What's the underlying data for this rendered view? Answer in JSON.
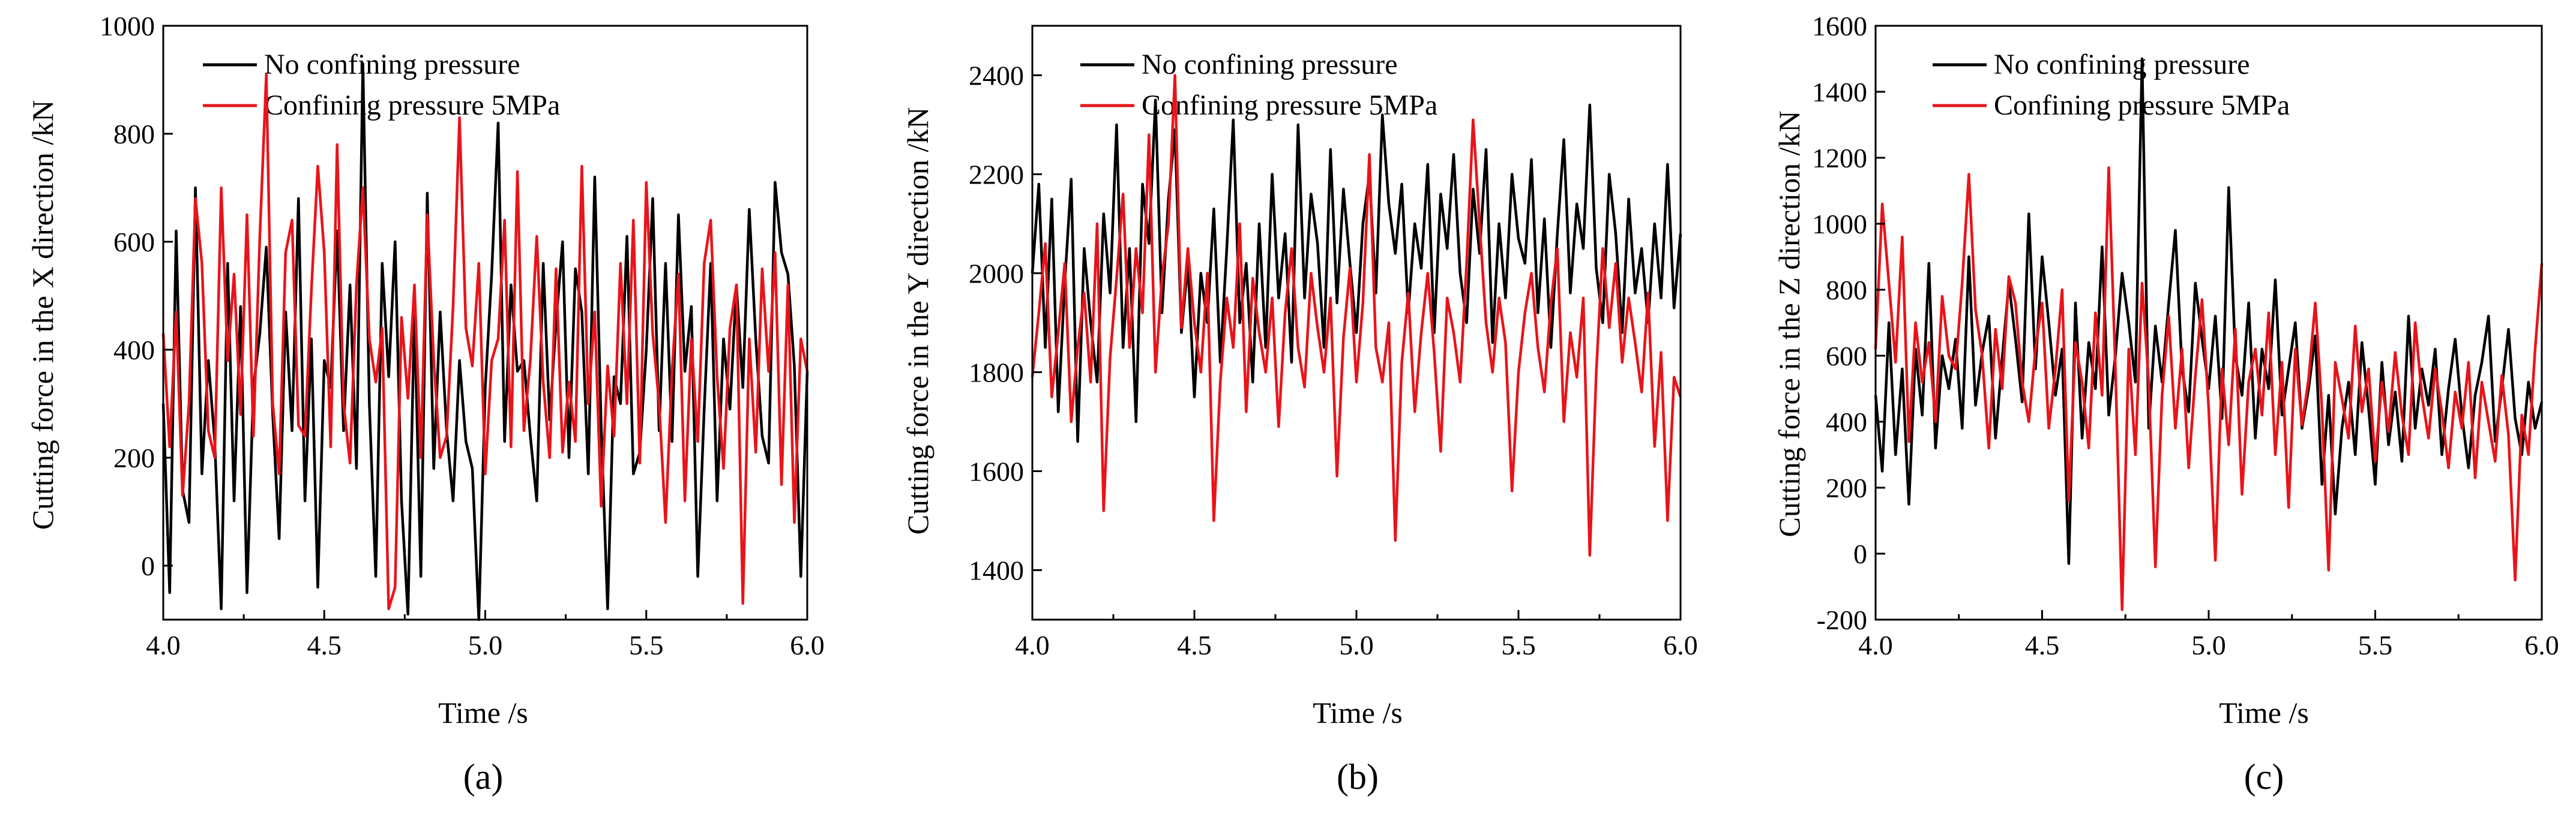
{
  "colors": {
    "series_1": "#000000",
    "series_2": "#e8141a",
    "axis": "#000000",
    "background": "#ffffff"
  },
  "chart_data": [
    {
      "type": "line",
      "panel_label": "(a)",
      "xlabel": "Time /s",
      "ylabel": "Cutting force in the X direction /kN",
      "xlim": [
        4.0,
        6.0
      ],
      "ylim": [
        -100,
        1000
      ],
      "xticks": [
        4.0,
        4.5,
        5.0,
        5.5,
        6.0
      ],
      "xtick_labels": [
        "4.0",
        "4.5",
        "5.0",
        "5.5",
        "6.0"
      ],
      "yticks": [
        0,
        200,
        400,
        600,
        800,
        1000
      ],
      "ytick_labels": [
        "0",
        "200",
        "400",
        "600",
        "800",
        "1000"
      ],
      "legend": [
        "No confining pressure",
        "Confining pressure 5MPa"
      ],
      "series": [
        {
          "name": "No confining pressure",
          "color": "#000000",
          "x_start": 4.0,
          "x_end": 6.0,
          "values": [
            300,
            -50,
            620,
            140,
            80,
            700,
            170,
            380,
            230,
            -80,
            560,
            120,
            480,
            -50,
            330,
            430,
            590,
            280,
            50,
            470,
            250,
            680,
            120,
            420,
            -40,
            380,
            330,
            620,
            250,
            520,
            180,
            930,
            300,
            -20,
            560,
            350,
            600,
            120,
            -90,
            470,
            -20,
            690,
            180,
            470,
            250,
            120,
            380,
            230,
            180,
            -100,
            330,
            540,
            820,
            230,
            520,
            360,
            380,
            240,
            120,
            560,
            270,
            450,
            600,
            200,
            550,
            470,
            170,
            720,
            260,
            -80,
            350,
            300,
            610,
            170,
            210,
            400,
            680,
            250,
            560,
            230,
            650,
            360,
            480,
            -20,
            290,
            560,
            120,
            420,
            290,
            520,
            330,
            660,
            420,
            240,
            190,
            710,
            580,
            540,
            370,
            -20,
            360
          ]
        },
        {
          "name": "Confining pressure 5MPa",
          "color": "#e8141a",
          "x_start": 4.0,
          "x_end": 6.0,
          "values": [
            430,
            220,
            470,
            130,
            300,
            680,
            560,
            250,
            200,
            700,
            380,
            540,
            280,
            650,
            240,
            610,
            910,
            300,
            170,
            580,
            640,
            260,
            240,
            510,
            740,
            580,
            220,
            780,
            300,
            190,
            520,
            700,
            420,
            340,
            440,
            -80,
            -40,
            460,
            310,
            520,
            200,
            650,
            380,
            200,
            240,
            480,
            830,
            440,
            370,
            560,
            170,
            380,
            420,
            640,
            220,
            730,
            250,
            380,
            610,
            340,
            200,
            550,
            210,
            340,
            230,
            740,
            300,
            470,
            110,
            370,
            240,
            560,
            300,
            640,
            190,
            710,
            430,
            300,
            80,
            360,
            540,
            120,
            420,
            230,
            560,
            640,
            350,
            180,
            440,
            520,
            -70,
            420,
            210,
            550,
            360,
            580,
            150,
            520,
            80,
            420,
            360
          ]
        }
      ]
    },
    {
      "type": "line",
      "panel_label": "(b)",
      "xlabel": "Time /s",
      "ylabel": "Cutting force in the Y direction /kN",
      "xlim": [
        4.0,
        6.0
      ],
      "ylim": [
        1300,
        2500
      ],
      "xticks": [
        4.0,
        4.5,
        5.0,
        5.5,
        6.0
      ],
      "xtick_labels": [
        "4.0",
        "4.5",
        "5.0",
        "5.5",
        "6.0"
      ],
      "yticks": [
        1400,
        1600,
        1800,
        2000,
        2200,
        2400
      ],
      "ytick_labels": [
        "1400",
        "1600",
        "1800",
        "2000",
        "2200",
        "2400"
      ],
      "legend": [
        "No confining pressure",
        "Confining pressure 5MPa"
      ],
      "series": [
        {
          "name": "No confining pressure",
          "color": "#000000",
          "x_start": 4.0,
          "x_end": 6.0,
          "values": [
            2000,
            2180,
            1850,
            2150,
            1720,
            1980,
            2190,
            1660,
            2050,
            1900,
            1780,
            2120,
            1960,
            2300,
            1850,
            2050,
            1700,
            2180,
            2060,
            2350,
            1920,
            2150,
            2290,
            1880,
            2020,
            1750,
            2000,
            1900,
            2130,
            1820,
            2050,
            2310,
            1900,
            2020,
            1780,
            2100,
            1850,
            2200,
            1950,
            2080,
            1820,
            2300,
            1950,
            2160,
            2060,
            1850,
            2250,
            1940,
            2170,
            2020,
            1880,
            2100,
            2200,
            1960,
            2320,
            2140,
            2040,
            2180,
            1920,
            2100,
            2010,
            2220,
            1880,
            2160,
            2050,
            2240,
            2000,
            1900,
            2170,
            2040,
            2250,
            1860,
            2100,
            1950,
            2200,
            2070,
            2020,
            2230,
            1920,
            2110,
            1850,
            2080,
            2270,
            1960,
            2140,
            2050,
            2340,
            2010,
            1900,
            2200,
            2080,
            1880,
            2150,
            1960,
            2050,
            1900,
            2100,
            1950,
            2220,
            1930,
            2080
          ]
        },
        {
          "name": "Confining pressure 5MPa",
          "color": "#e8141a",
          "x_start": 4.0,
          "x_end": 6.0,
          "values": [
            1790,
            1920,
            2060,
            1750,
            1880,
            2020,
            1700,
            1850,
            1960,
            1780,
            2100,
            1520,
            1830,
            1990,
            2160,
            1850,
            2050,
            1920,
            2280,
            1800,
            1990,
            2100,
            2400,
            1890,
            2050,
            1900,
            1800,
            2000,
            1500,
            1780,
            1950,
            1850,
            2100,
            1720,
            1990,
            1880,
            1800,
            1950,
            1690,
            1920,
            2050,
            1850,
            1770,
            2000,
            1890,
            1800,
            1950,
            1590,
            1870,
            2010,
            1780,
            1940,
            2240,
            1850,
            1780,
            1900,
            1460,
            1820,
            1960,
            1720,
            1880,
            2000,
            1840,
            1640,
            1950,
            1880,
            1780,
            2020,
            2310,
            2100,
            1900,
            1800,
            1950,
            1860,
            1560,
            1800,
            1920,
            2000,
            1850,
            1760,
            1940,
            2050,
            1700,
            1880,
            1790,
            1950,
            1430,
            1800,
            2050,
            1890,
            2020,
            1820,
            1950,
            1860,
            1760,
            1960,
            1650,
            1840,
            1500,
            1790,
            1750
          ]
        }
      ]
    },
    {
      "type": "line",
      "panel_label": "(c)",
      "xlabel": "Time /s",
      "ylabel": "Cutting force in the Z direction /kN",
      "xlim": [
        4.0,
        6.0
      ],
      "ylim": [
        -200,
        1600
      ],
      "xticks": [
        4.0,
        4.5,
        5.0,
        5.5,
        6.0
      ],
      "xtick_labels": [
        "4.0",
        "4.5",
        "5.0",
        "5.5",
        "6.0"
      ],
      "yticks": [
        -200,
        0,
        200,
        400,
        600,
        800,
        1000,
        1200,
        1400,
        1600
      ],
      "ytick_labels": [
        "-200",
        "0",
        "200",
        "400",
        "600",
        "800",
        "1000",
        "1200",
        "1400",
        "1600"
      ],
      "legend": [
        "No confining pressure",
        "Confining pressure 5MPa"
      ],
      "series": [
        {
          "name": "No confining pressure",
          "color": "#000000",
          "x_start": 4.0,
          "x_end": 6.0,
          "values": [
            480,
            250,
            700,
            300,
            560,
            150,
            620,
            420,
            880,
            320,
            600,
            500,
            650,
            380,
            900,
            450,
            610,
            720,
            350,
            590,
            820,
            650,
            460,
            1030,
            560,
            900,
            700,
            480,
            620,
            -30,
            760,
            350,
            640,
            500,
            930,
            420,
            600,
            850,
            700,
            520,
            1500,
            380,
            690,
            520,
            760,
            980,
            560,
            430,
            820,
            650,
            500,
            720,
            410,
            1110,
            600,
            480,
            760,
            350,
            620,
            500,
            830,
            420,
            560,
            700,
            380,
            500,
            660,
            210,
            480,
            120,
            380,
            520,
            300,
            640,
            440,
            210,
            580,
            330,
            490,
            280,
            720,
            380,
            560,
            450,
            620,
            300,
            500,
            650,
            420,
            260,
            480,
            580,
            720,
            340,
            500,
            680,
            410,
            300,
            520,
            380,
            460
          ]
        },
        {
          "name": "Confining pressure 5MPa",
          "color": "#e8141a",
          "x_start": 4.0,
          "x_end": 6.0,
          "values": [
            620,
            1060,
            820,
            580,
            960,
            340,
            700,
            520,
            640,
            400,
            780,
            600,
            560,
            820,
            1150,
            740,
            600,
            320,
            680,
            500,
            840,
            760,
            520,
            400,
            620,
            760,
            380,
            560,
            800,
            160,
            640,
            520,
            320,
            730,
            480,
            1170,
            560,
            -170,
            620,
            300,
            820,
            520,
            -40,
            480,
            720,
            380,
            620,
            260,
            540,
            770,
            440,
            -20,
            560,
            330,
            680,
            180,
            520,
            620,
            420,
            730,
            300,
            580,
            140,
            620,
            390,
            530,
            760,
            440,
            -50,
            580,
            470,
            350,
            690,
            430,
            560,
            280,
            520,
            370,
            610,
            420,
            300,
            700,
            480,
            350,
            560,
            430,
            260,
            490,
            380,
            580,
            230,
            520,
            400,
            280,
            540,
            360,
            -80,
            420,
            300,
            620,
            880
          ]
        }
      ]
    }
  ]
}
